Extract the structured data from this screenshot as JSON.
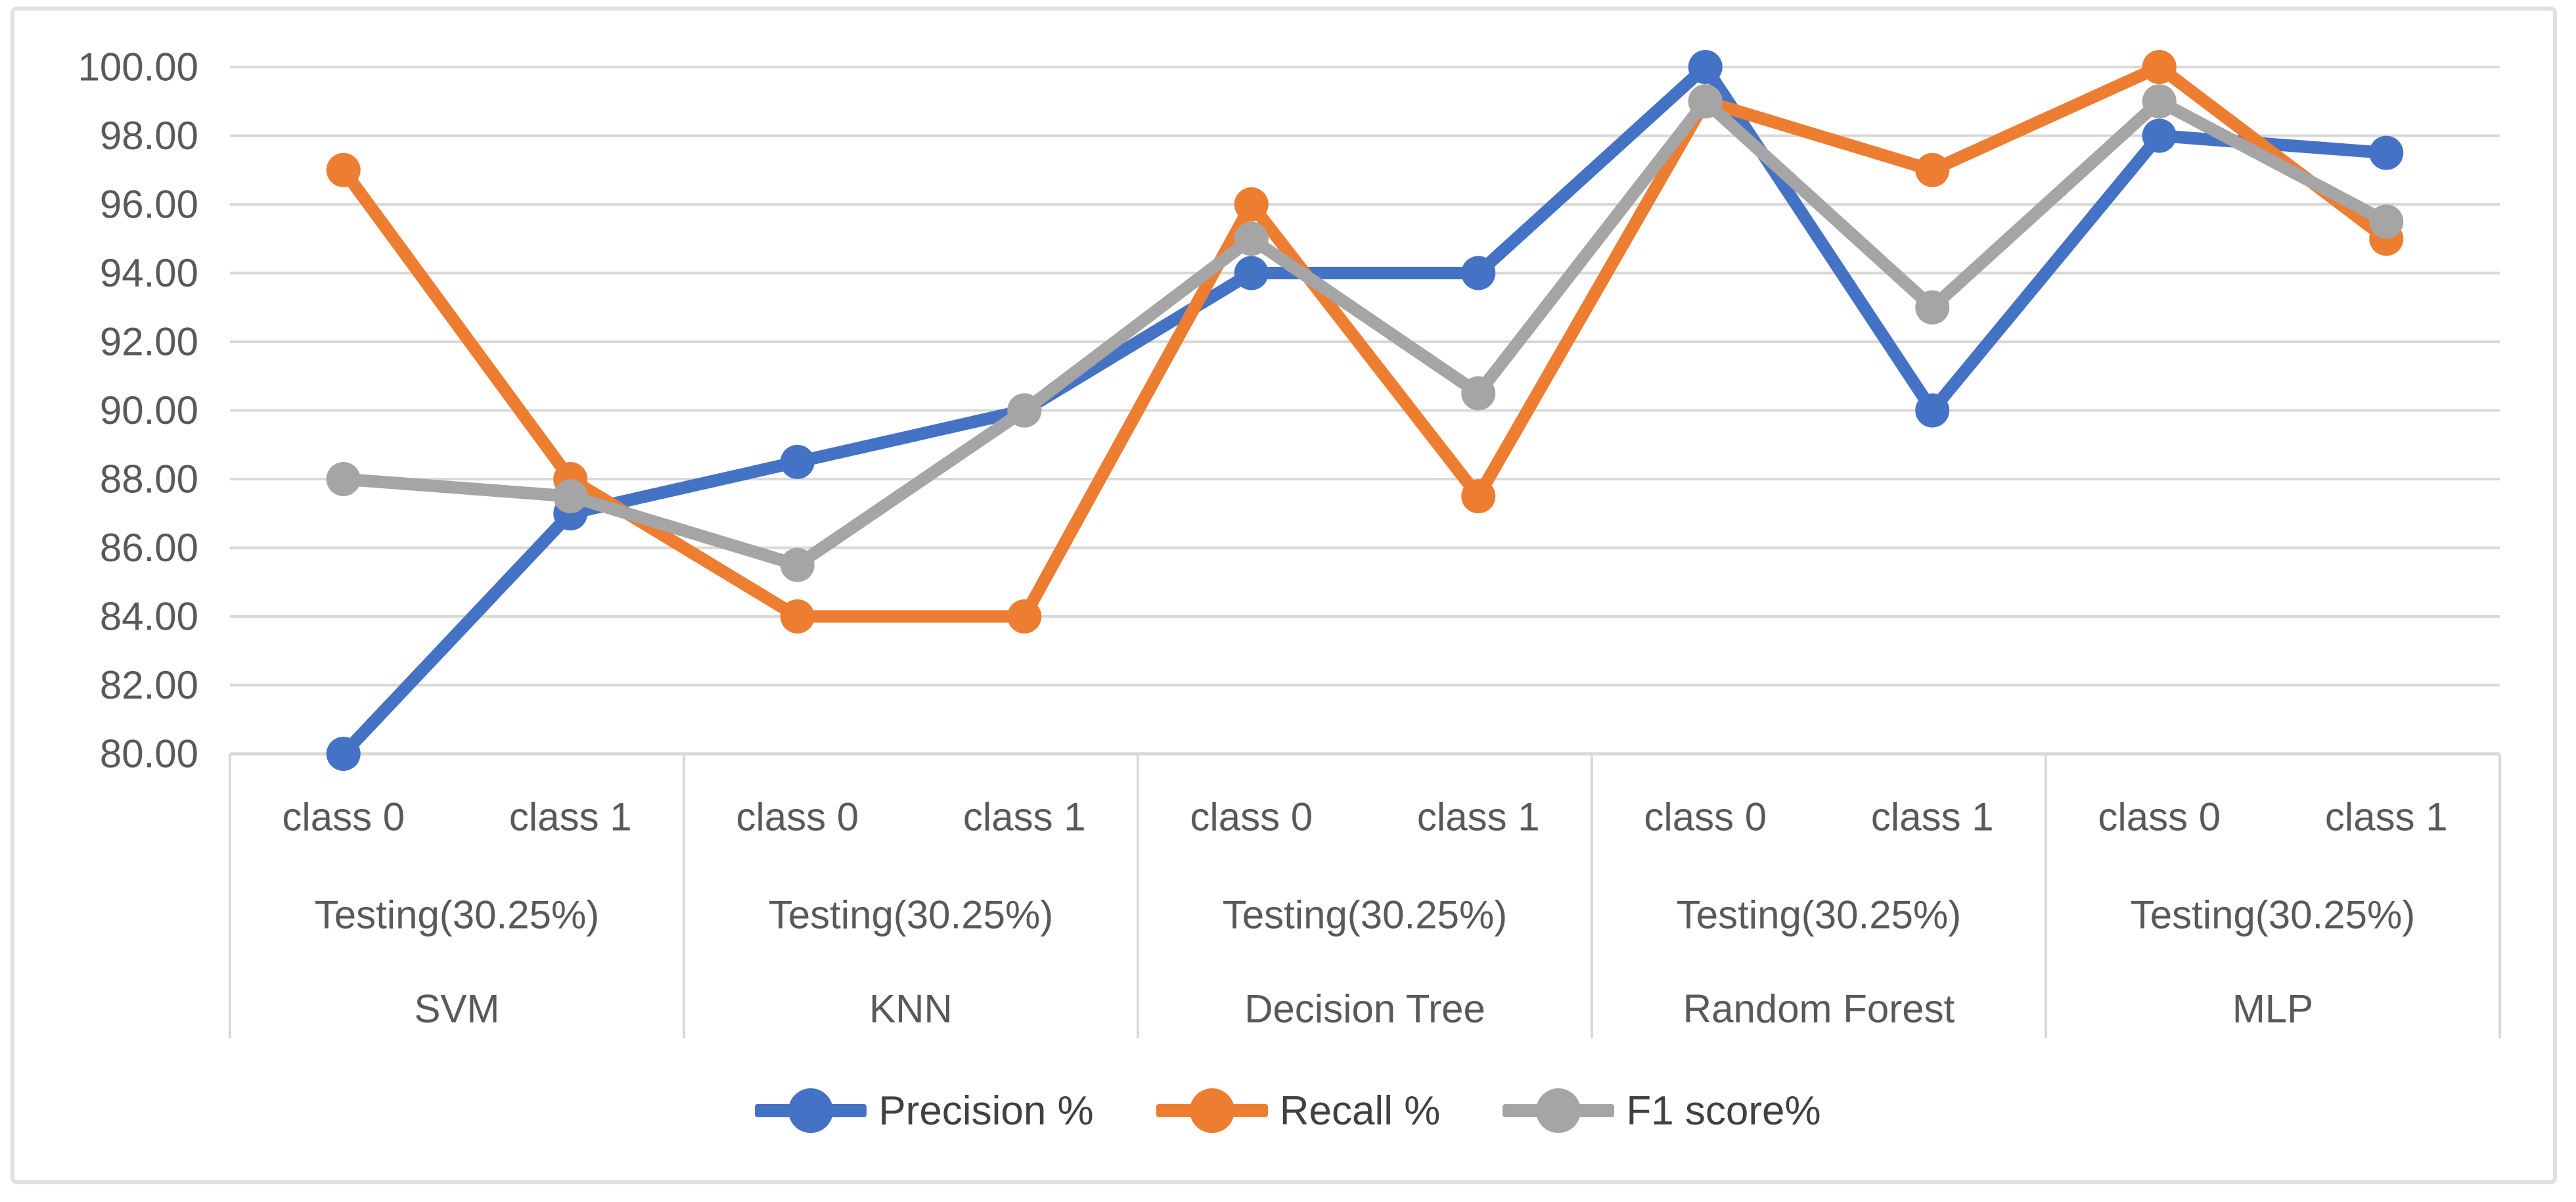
{
  "chart_data": {
    "type": "line",
    "title": "",
    "xlabel": "",
    "ylabel": "",
    "ylim": [
      80,
      100
    ],
    "ytick_step": 2,
    "ytick_labels": [
      "100.00",
      "98.00",
      "96.00",
      "94.00",
      "92.00",
      "90.00",
      "88.00",
      "86.00",
      "84.00",
      "82.00",
      "80.00"
    ],
    "grid": true,
    "legend_position": "bottom",
    "class_labels": [
      "class 0",
      "class 1"
    ],
    "groups": [
      {
        "label": "SVM",
        "sub_label": "Testing(30.25%)",
        "classes": [
          "class 0",
          "class 1"
        ]
      },
      {
        "label": "KNN",
        "sub_label": "Testing(30.25%)",
        "classes": [
          "class 0",
          "class 1"
        ]
      },
      {
        "label": "Decision Tree",
        "sub_label": "Testing(30.25%)",
        "classes": [
          "class 0",
          "class 1"
        ]
      },
      {
        "label": "Random Forest",
        "sub_label": "Testing(30.25%)",
        "classes": [
          "class 0",
          "class 1"
        ]
      },
      {
        "label": "MLP",
        "sub_label": "Testing(30.25%)",
        "classes": [
          "class 0",
          "class 1"
        ]
      }
    ],
    "series": [
      {
        "name": "Precision %",
        "color": "#4472C4",
        "values": [
          80.0,
          87.0,
          88.5,
          90.0,
          94.0,
          94.0,
          100.0,
          90.0,
          98.0,
          97.5
        ]
      },
      {
        "name": "Recall %",
        "color": "#ED7D31",
        "values": [
          97.0,
          88.0,
          84.0,
          84.0,
          96.0,
          87.5,
          99.0,
          97.0,
          100.0,
          95.0
        ]
      },
      {
        "name": "F1 score%",
        "color": "#A5A5A5",
        "values": [
          88.0,
          87.5,
          85.5,
          90.0,
          95.0,
          90.5,
          99.0,
          93.0,
          99.0,
          95.5
        ]
      }
    ]
  },
  "colors": {
    "background": "#FFFFFF",
    "frame_border": "#E0E0E0",
    "gridline": "#D9D9D9",
    "axis_line": "#D9D9D9",
    "category_divider": "#D9D9D9",
    "axis_text": "#595959",
    "legend_text": "#404040"
  }
}
